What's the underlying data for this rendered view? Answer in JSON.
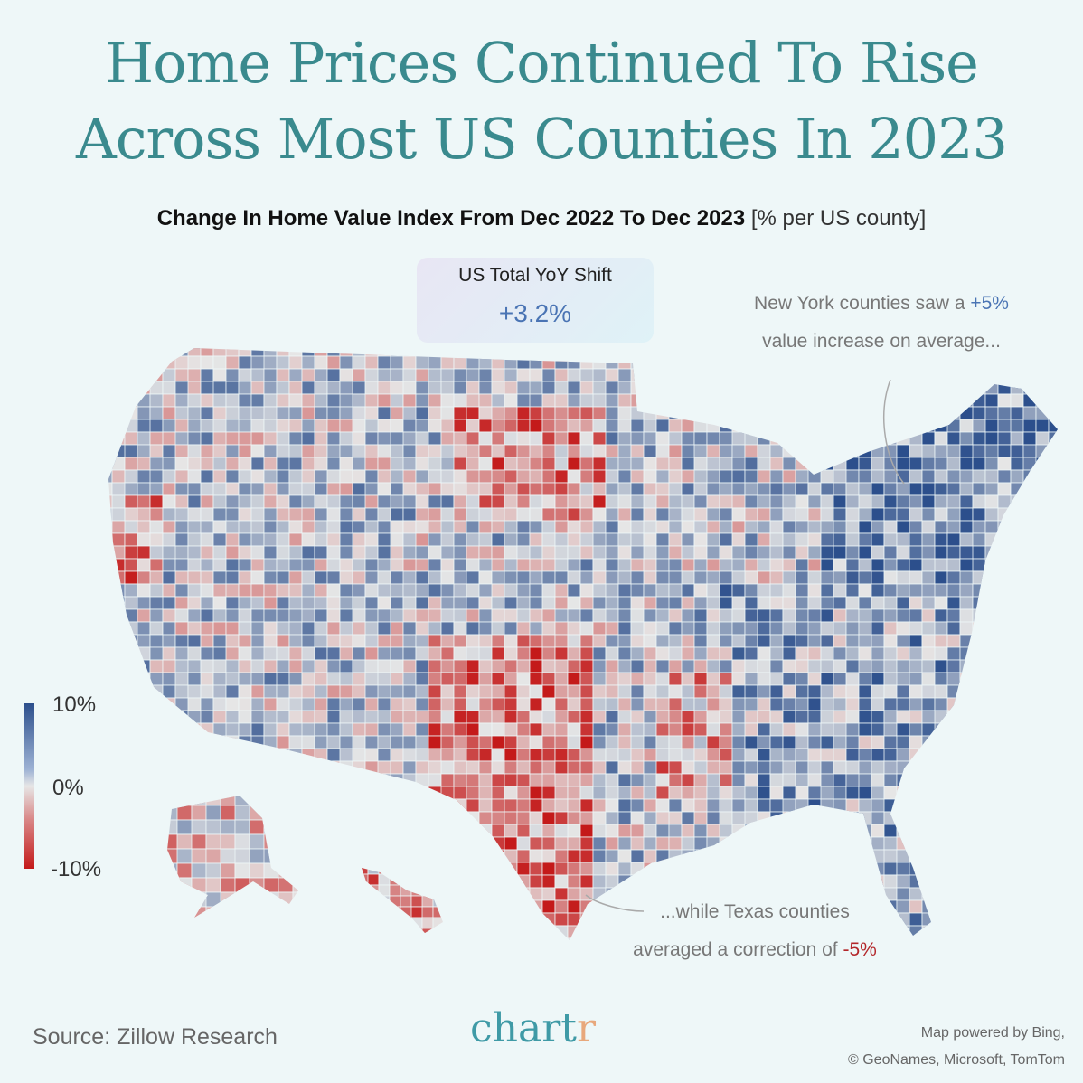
{
  "title": {
    "line1": "Home Prices Continued To Rise",
    "line2": "Across Most US Counties In 2023"
  },
  "subtitle": {
    "main": "Change In Home Value Index From Dec 2022 To Dec 2023",
    "unit": "[% per US county]"
  },
  "kpi": {
    "label": "US Total YoY Shift",
    "value": "+3.2%"
  },
  "annotation_ny": {
    "text1": "New York counties saw a ",
    "value": "+5%",
    "text2": "value increase on average..."
  },
  "annotation_tx": {
    "text1": "...while Texas counties",
    "text2": "averaged a correction of ",
    "value": "-5%"
  },
  "legend": {
    "max": "10%",
    "mid": "0%",
    "min": "-10%",
    "scale_colors": [
      "#2c4f8c",
      "#e6e6e6",
      "#c41a1a"
    ]
  },
  "source": "Source: Zillow Research",
  "logo": {
    "main": "chart",
    "accent": "r"
  },
  "credit": {
    "line1": "Map powered by Bing,",
    "line2": "© GeoNames, Microsoft, TomTom"
  },
  "chart_data": {
    "type": "choropleth",
    "region": "US counties",
    "metric": "Change in home value index (%)",
    "color_range": [
      -10,
      10
    ],
    "us_total": 3.2,
    "new_york_avg": 5,
    "texas_avg": -5
  }
}
